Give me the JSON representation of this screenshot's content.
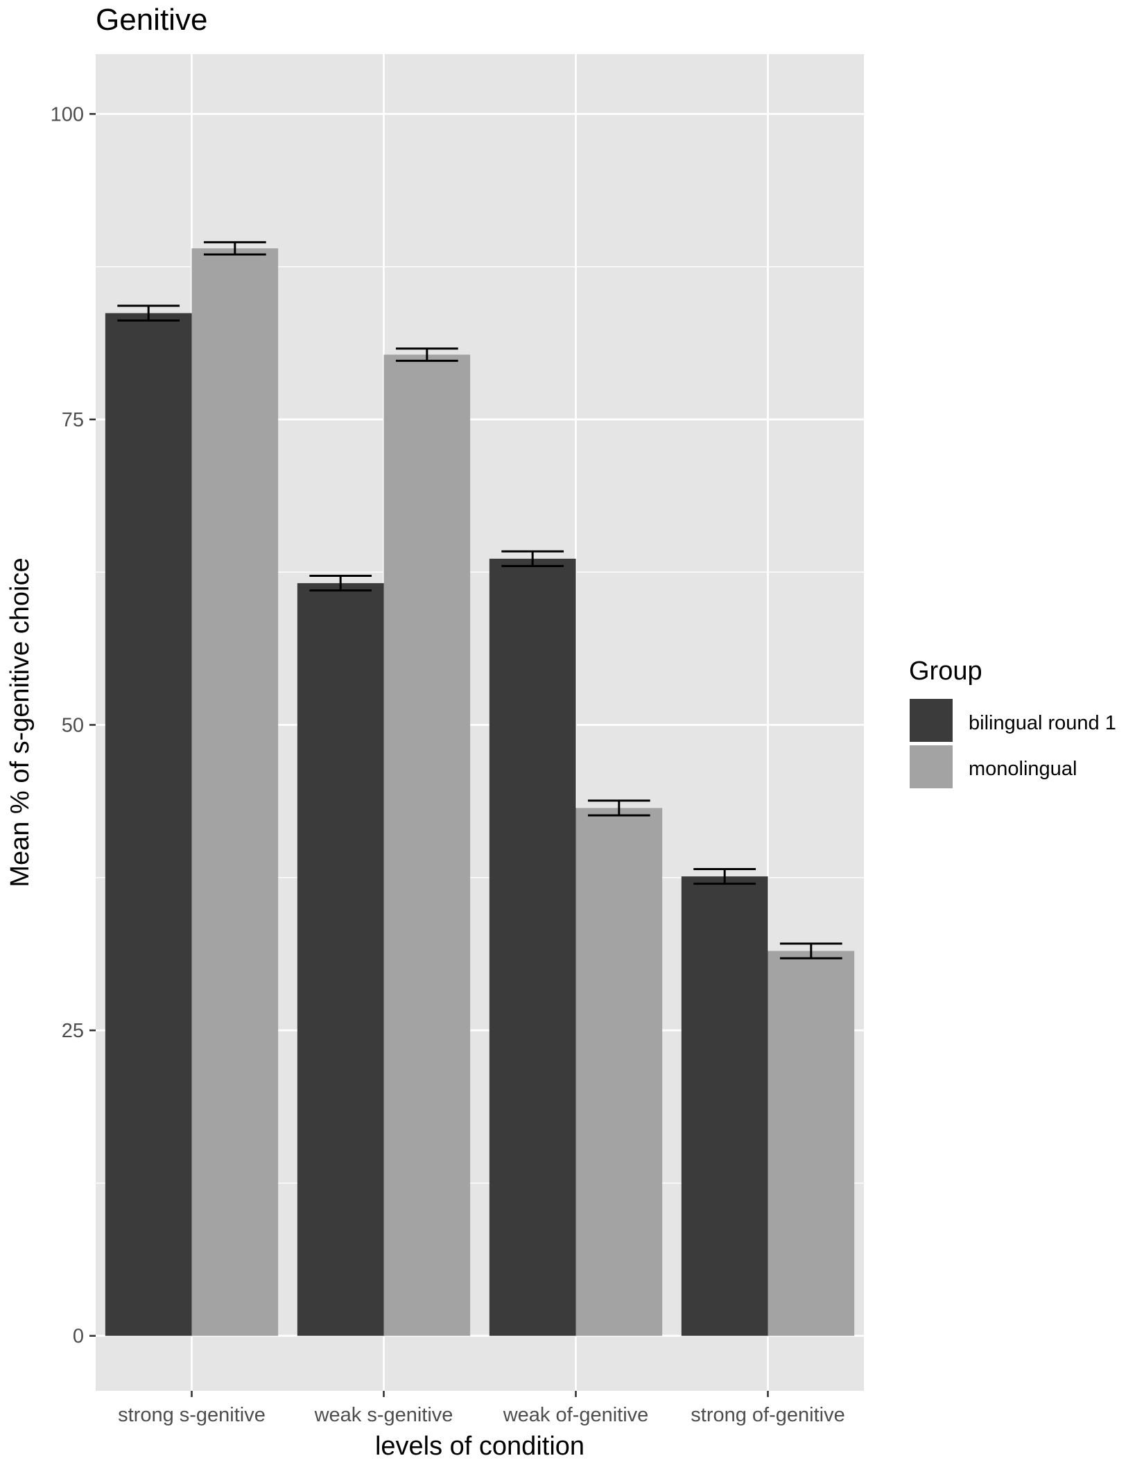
{
  "chart_data": {
    "type": "bar",
    "title": "Genitive",
    "xlabel": "levels of condition",
    "ylabel": "Mean % of s-genitive choice",
    "categories": [
      "strong s-genitive",
      "weak s-genitive",
      "weak of-genitive",
      "strong of-genitive"
    ],
    "series": [
      {
        "name": "bilingual round 1",
        "color": "#3b3b3b",
        "values": [
          83.7,
          61.6,
          63.6,
          37.6
        ],
        "error": [
          0.6,
          0.6,
          0.6,
          0.6
        ]
      },
      {
        "name": "monolingual",
        "color": "#a3a3a3",
        "values": [
          89.0,
          80.3,
          43.2,
          31.5
        ],
        "error": [
          0.5,
          0.5,
          0.6,
          0.6
        ]
      }
    ],
    "ylim": [
      -4.5,
      104.9
    ],
    "yticks": [
      0,
      25,
      50,
      75,
      100
    ],
    "grid": true,
    "panel_background": "#e5e5e5",
    "grid_color": "#ffffff",
    "legend": {
      "title": "Group",
      "position": "right"
    }
  }
}
